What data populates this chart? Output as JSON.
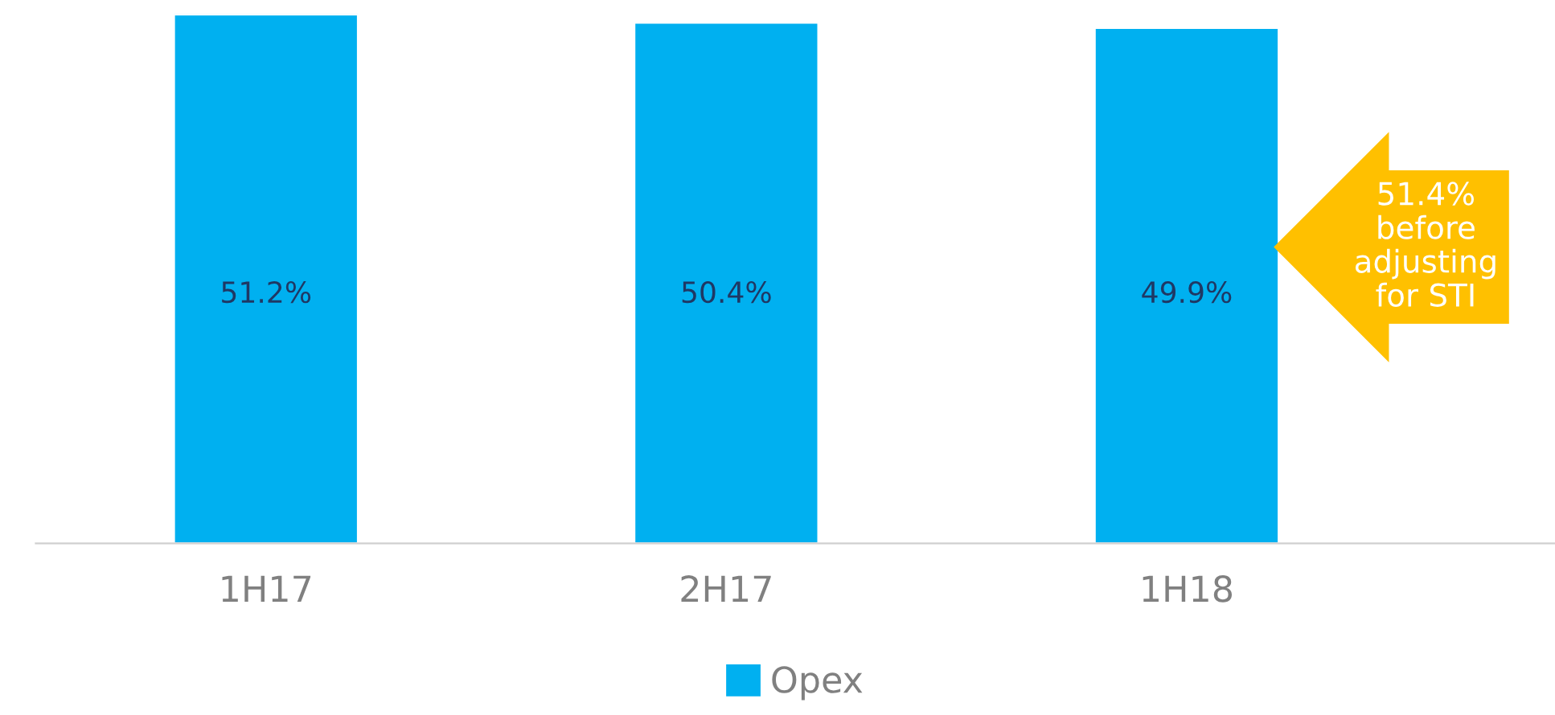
{
  "chart_data": {
    "type": "bar",
    "categories": [
      "1H17",
      "2H17",
      "1H18"
    ],
    "series": [
      {
        "name": "Opex",
        "color": "#00b0f0",
        "values": [
          51.2,
          50.4,
          49.9
        ],
        "value_labels": [
          "51.2%",
          "50.4%",
          "49.9%"
        ]
      }
    ],
    "tick_labels": "x",
    "legend": "bottom",
    "grid": false,
    "annotations": [
      "51.4%\nbefore\nadjusting\nfor STI"
    ]
  }
}
